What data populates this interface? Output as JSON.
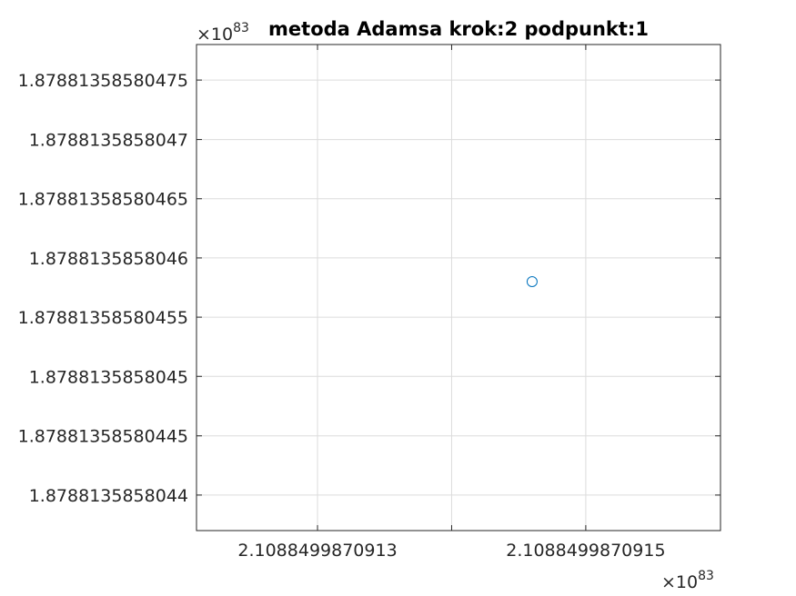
{
  "chart_data": {
    "type": "scatter",
    "title": "metoda Adamsa krok:2 podpunkt:1",
    "xlabel": "",
    "ylabel": "",
    "grid": true,
    "x_multiplier": "×10",
    "x_exponent": "83",
    "y_multiplier": "×10",
    "y_exponent": "83",
    "xlim": [
      2.10884998709121,
      2.1088499870916
    ],
    "ylim": [
      1.87881358580437,
      1.87881358580478
    ],
    "x_ticks": [
      {
        "value": 2.1088499870913,
        "label": "2.1088499870913"
      },
      {
        "value": 2.1088499870914,
        "label": ""
      },
      {
        "value": 2.1088499870915,
        "label": "2.1088499870915"
      },
      {
        "value": 2.1088499870916,
        "label": ""
      }
    ],
    "y_ticks": [
      {
        "value": 1.87881358580475,
        "label": "1.87881358580475"
      },
      {
        "value": 1.8788135858047,
        "label": "1.8788135858047"
      },
      {
        "value": 1.87881358580465,
        "label": "1.87881358580465"
      },
      {
        "value": 1.8788135858046,
        "label": "1.8788135858046"
      },
      {
        "value": 1.87881358580455,
        "label": "1.87881358580455"
      },
      {
        "value": 1.8788135858045,
        "label": "1.8788135858045"
      },
      {
        "value": 1.87881358580445,
        "label": "1.87881358580445"
      },
      {
        "value": 1.8788135858044,
        "label": "1.8788135858044"
      }
    ],
    "series": [
      {
        "marker": "circle",
        "color": "#0072BD",
        "points": [
          {
            "x": 2.10884998709146,
            "y": 1.87881358580458
          }
        ]
      }
    ]
  }
}
